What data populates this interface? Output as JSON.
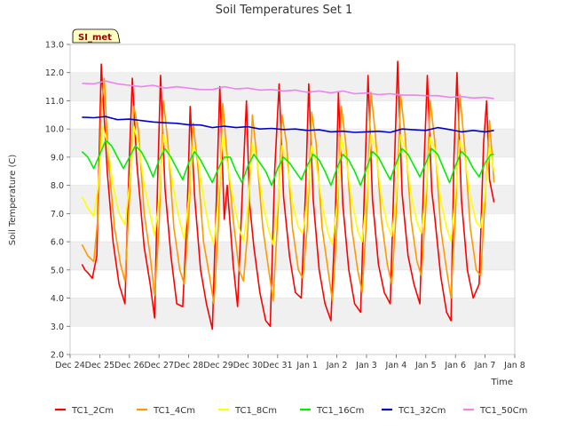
{
  "chart_data": {
    "type": "line",
    "title": "Soil Temperatures Set 1",
    "xlabel": "Time",
    "ylabel": "Soil Temperature (C)",
    "badge": "SI_met",
    "ylim": [
      2.0,
      13.0
    ],
    "yticks": [
      "2.0",
      "3.0",
      "4.0",
      "5.0",
      "6.0",
      "7.0",
      "8.0",
      "9.0",
      "10.0",
      "11.0",
      "12.0",
      "13.0"
    ],
    "xlim": [
      0,
      15
    ],
    "xticks": [
      "Dec 24",
      "Dec 25",
      "Dec 26",
      "Dec 27",
      "Dec 28",
      "Dec 29",
      "Dec 30",
      "Dec 31",
      "Jan 1",
      "Jan 2",
      "Jan 3",
      "Jan 4",
      "Jan 5",
      "Jan 6",
      "Jan 7",
      "Jan 8"
    ],
    "grid": "horizontal bands",
    "legend_position": "bottom",
    "x_note": "x values are days after Dec 24 00:00",
    "series": [
      {
        "name": "TC1_2Cm",
        "color": "#ff0000",
        "x": [
          0.4,
          0.5,
          0.6,
          0.75,
          0.9,
          1.05,
          1.25,
          1.45,
          1.65,
          1.85,
          2.0,
          2.1,
          2.25,
          2.5,
          2.7,
          2.85,
          2.95,
          3.05,
          3.2,
          3.4,
          3.6,
          3.8,
          3.95,
          4.05,
          4.2,
          4.4,
          4.6,
          4.8,
          4.95,
          5.05,
          5.2,
          5.3,
          5.5,
          5.65,
          5.8,
          5.95,
          6.05,
          6.2,
          6.4,
          6.6,
          6.75,
          6.9,
          7.05,
          7.2,
          7.4,
          7.6,
          7.8,
          7.95,
          8.05,
          8.2,
          8.4,
          8.6,
          8.8,
          8.95,
          9.05,
          9.2,
          9.4,
          9.6,
          9.8,
          9.95,
          10.05,
          10.2,
          10.4,
          10.6,
          10.8,
          10.95,
          11.05,
          11.2,
          11.4,
          11.6,
          11.8,
          11.95,
          12.05,
          12.2,
          12.3,
          12.5,
          12.7,
          12.85,
          12.95,
          13.05,
          13.2,
          13.4,
          13.6,
          13.8,
          13.95,
          14.05,
          14.15,
          14.3
        ],
        "y": [
          5.2,
          5.0,
          4.9,
          4.7,
          5.5,
          12.3,
          8.5,
          6.0,
          4.5,
          3.8,
          9.0,
          11.8,
          8.8,
          5.8,
          4.5,
          3.3,
          8.0,
          11.9,
          7.9,
          5.5,
          3.8,
          3.7,
          7.0,
          10.8,
          7.6,
          5.0,
          3.8,
          2.9,
          8.0,
          11.5,
          6.8,
          8.0,
          5.2,
          3.7,
          7.5,
          11.0,
          7.4,
          5.8,
          4.2,
          3.2,
          3.0,
          8.5,
          11.6,
          7.6,
          5.5,
          4.2,
          4.0,
          8.0,
          11.6,
          7.5,
          5.0,
          3.8,
          3.2,
          7.0,
          11.3,
          7.3,
          5.0,
          3.8,
          3.5,
          8.5,
          11.9,
          7.5,
          5.2,
          4.2,
          3.8,
          9.0,
          12.4,
          7.7,
          5.5,
          4.5,
          3.8,
          9.0,
          11.9,
          7.8,
          6.9,
          4.8,
          3.5,
          3.2,
          9.0,
          12.0,
          7.5,
          5.0,
          4.0,
          4.5,
          9.5,
          11.0,
          8.2,
          7.4
        ]
      },
      {
        "name": "TC1_4Cm",
        "color": "#ff9900",
        "x": [
          0.4,
          0.6,
          0.8,
          0.95,
          1.05,
          1.15,
          1.3,
          1.5,
          1.7,
          1.85,
          2.0,
          2.15,
          2.3,
          2.5,
          2.7,
          2.85,
          3.0,
          3.15,
          3.3,
          3.5,
          3.7,
          3.85,
          4.0,
          4.15,
          4.3,
          4.5,
          4.7,
          4.85,
          5.0,
          5.15,
          5.3,
          5.5,
          5.7,
          5.85,
          6.0,
          6.15,
          6.3,
          6.5,
          6.7,
          6.85,
          7.0,
          7.15,
          7.3,
          7.5,
          7.7,
          7.85,
          8.0,
          8.15,
          8.3,
          8.5,
          8.7,
          8.85,
          9.0,
          9.15,
          9.3,
          9.5,
          9.7,
          9.85,
          10.0,
          10.15,
          10.3,
          10.5,
          10.7,
          10.85,
          11.0,
          11.15,
          11.3,
          11.5,
          11.7,
          11.85,
          12.0,
          12.15,
          12.3,
          12.5,
          12.7,
          12.85,
          13.0,
          13.15,
          13.3,
          13.5,
          13.7,
          13.85,
          14.0,
          14.15,
          14.3
        ],
        "y": [
          5.9,
          5.5,
          5.3,
          7.0,
          10.8,
          11.8,
          8.8,
          6.5,
          5.2,
          4.6,
          7.5,
          10.8,
          10.0,
          7.0,
          5.5,
          4.1,
          6.5,
          11.0,
          9.5,
          6.5,
          5.0,
          4.5,
          6.8,
          10.2,
          8.8,
          6.0,
          4.8,
          3.8,
          6.5,
          10.9,
          9.0,
          6.8,
          5.0,
          4.6,
          6.5,
          10.5,
          9.0,
          6.5,
          5.0,
          3.9,
          6.8,
          10.5,
          9.5,
          6.5,
          5.0,
          4.7,
          6.5,
          10.6,
          9.5,
          6.5,
          5.0,
          3.9,
          6.5,
          10.8,
          9.5,
          6.5,
          5.0,
          4.2,
          6.8,
          11.3,
          9.8,
          6.8,
          5.2,
          4.5,
          7.0,
          11.2,
          9.8,
          6.8,
          5.3,
          4.8,
          7.2,
          11.0,
          9.6,
          6.5,
          5.0,
          4.0,
          7.0,
          11.2,
          9.5,
          6.5,
          5.0,
          4.8,
          7.5,
          10.3,
          8.1
        ]
      },
      {
        "name": "TC1_8Cm",
        "color": "#ffff00",
        "x": [
          0.4,
          0.6,
          0.8,
          0.95,
          1.1,
          1.25,
          1.45,
          1.65,
          1.85,
          2.0,
          2.15,
          2.3,
          2.5,
          2.7,
          2.85,
          3.0,
          3.15,
          3.3,
          3.5,
          3.7,
          3.85,
          4.0,
          4.15,
          4.3,
          4.5,
          4.7,
          4.85,
          5.0,
          5.15,
          5.3,
          5.5,
          5.7,
          5.85,
          6.0,
          6.15,
          6.3,
          6.5,
          6.7,
          6.85,
          7.0,
          7.15,
          7.3,
          7.5,
          7.7,
          7.85,
          8.0,
          8.15,
          8.3,
          8.5,
          8.7,
          8.85,
          9.0,
          9.15,
          9.3,
          9.5,
          9.7,
          9.85,
          10.0,
          10.15,
          10.3,
          10.5,
          10.7,
          10.85,
          11.0,
          11.15,
          11.3,
          11.5,
          11.7,
          11.85,
          12.0,
          12.15,
          12.3,
          12.5,
          12.7,
          12.85,
          13.0,
          13.15,
          13.3,
          13.5,
          13.7,
          13.85,
          14.0,
          14.15,
          14.3
        ],
        "y": [
          7.6,
          7.2,
          6.9,
          8.0,
          10.1,
          9.5,
          8.0,
          7.0,
          6.6,
          8.0,
          10.1,
          9.5,
          8.0,
          7.0,
          6.2,
          7.5,
          9.8,
          9.2,
          7.8,
          6.7,
          6.1,
          7.5,
          9.4,
          9.0,
          7.6,
          6.4,
          5.9,
          7.5,
          9.8,
          8.8,
          7.5,
          6.5,
          6.0,
          7.3,
          9.5,
          8.9,
          7.4,
          6.4,
          5.9,
          7.3,
          9.4,
          8.9,
          7.4,
          6.5,
          6.3,
          7.5,
          9.4,
          8.8,
          7.3,
          6.3,
          5.9,
          7.3,
          9.7,
          9.0,
          7.5,
          6.4,
          6.0,
          7.5,
          9.8,
          9.3,
          7.6,
          6.6,
          6.2,
          7.6,
          9.8,
          9.3,
          7.7,
          6.7,
          6.3,
          7.8,
          9.7,
          9.3,
          7.5,
          6.5,
          6.0,
          7.7,
          9.6,
          9.1,
          7.6,
          6.7,
          6.5,
          7.7,
          9.4,
          8.5
        ]
      },
      {
        "name": "TC1_16Cm",
        "color": "#00ee00",
        "x": [
          0.4,
          0.6,
          0.8,
          1.0,
          1.2,
          1.4,
          1.6,
          1.8,
          2.0,
          2.2,
          2.4,
          2.6,
          2.8,
          3.0,
          3.2,
          3.4,
          3.6,
          3.8,
          4.0,
          4.2,
          4.4,
          4.6,
          4.8,
          5.0,
          5.2,
          5.4,
          5.6,
          5.8,
          6.0,
          6.2,
          6.4,
          6.6,
          6.8,
          7.0,
          7.2,
          7.4,
          7.6,
          7.8,
          8.0,
          8.2,
          8.4,
          8.6,
          8.8,
          9.0,
          9.2,
          9.4,
          9.6,
          9.8,
          10.0,
          10.2,
          10.4,
          10.6,
          10.8,
          11.0,
          11.2,
          11.4,
          11.6,
          11.8,
          12.0,
          12.2,
          12.4,
          12.6,
          12.8,
          13.0,
          13.2,
          13.4,
          13.6,
          13.8,
          14.0,
          14.2,
          14.3
        ],
        "y": [
          9.2,
          9.0,
          8.6,
          9.1,
          9.6,
          9.4,
          9.0,
          8.6,
          9.0,
          9.4,
          9.2,
          8.8,
          8.3,
          8.9,
          9.3,
          9.0,
          8.6,
          8.2,
          8.8,
          9.2,
          8.9,
          8.5,
          8.1,
          8.6,
          9.0,
          9.0,
          8.5,
          8.1,
          8.7,
          9.1,
          8.8,
          8.5,
          8.0,
          8.6,
          9.0,
          8.8,
          8.5,
          8.2,
          8.7,
          9.1,
          8.9,
          8.5,
          8.0,
          8.6,
          9.1,
          8.9,
          8.5,
          8.0,
          8.6,
          9.2,
          9.0,
          8.6,
          8.2,
          8.8,
          9.3,
          9.1,
          8.7,
          8.3,
          8.8,
          9.3,
          9.1,
          8.6,
          8.1,
          8.7,
          9.2,
          9.0,
          8.6,
          8.3,
          8.8,
          9.1,
          9.1
        ]
      },
      {
        "name": "TC1_32Cm",
        "color": "#0000cc",
        "x": [
          0.4,
          0.8,
          1.2,
          1.6,
          2.0,
          2.4,
          2.8,
          3.2,
          3.6,
          4.0,
          4.4,
          4.8,
          5.2,
          5.6,
          6.0,
          6.4,
          6.8,
          7.2,
          7.6,
          8.0,
          8.4,
          8.8,
          9.2,
          9.6,
          10.0,
          10.4,
          10.8,
          11.2,
          11.6,
          12.0,
          12.4,
          12.8,
          13.2,
          13.6,
          14.0,
          14.3
        ],
        "y": [
          10.42,
          10.4,
          10.44,
          10.33,
          10.35,
          10.3,
          10.25,
          10.22,
          10.2,
          10.15,
          10.14,
          10.05,
          10.1,
          10.05,
          10.08,
          10.0,
          10.02,
          9.98,
          10.0,
          9.95,
          9.97,
          9.9,
          9.92,
          9.88,
          9.9,
          9.92,
          9.88,
          10.0,
          9.97,
          9.95,
          10.05,
          9.98,
          9.9,
          9.95,
          9.9,
          9.95
        ]
      },
      {
        "name": "TC1_50Cm",
        "color": "#ee82ee",
        "x": [
          0.4,
          0.8,
          1.2,
          1.6,
          2.0,
          2.4,
          2.8,
          3.2,
          3.6,
          4.0,
          4.4,
          4.8,
          5.2,
          5.6,
          6.0,
          6.4,
          6.8,
          7.2,
          7.6,
          8.0,
          8.4,
          8.8,
          9.2,
          9.6,
          10.0,
          10.4,
          10.8,
          11.2,
          11.6,
          12.0,
          12.4,
          12.8,
          13.2,
          13.6,
          14.0,
          14.3
        ],
        "y": [
          11.62,
          11.6,
          11.7,
          11.6,
          11.55,
          11.5,
          11.55,
          11.45,
          11.5,
          11.45,
          11.4,
          11.4,
          11.5,
          11.42,
          11.45,
          11.38,
          11.4,
          11.35,
          11.38,
          11.3,
          11.35,
          11.28,
          11.35,
          11.25,
          11.28,
          11.22,
          11.25,
          11.2,
          11.2,
          11.18,
          11.18,
          11.12,
          11.15,
          11.1,
          11.12,
          11.08
        ]
      }
    ]
  }
}
